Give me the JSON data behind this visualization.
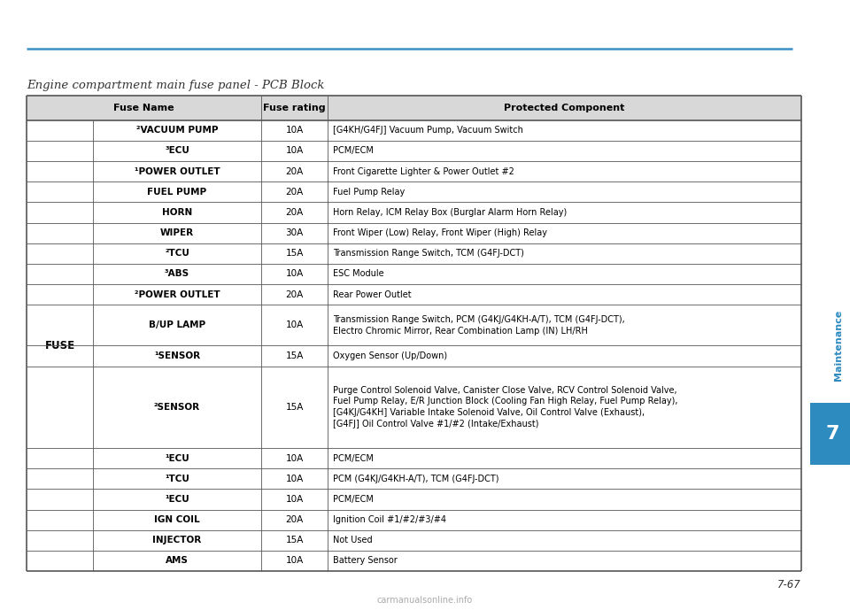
{
  "title": "Engine compartment main fuse panel - PCB Block",
  "page_number": "7-67",
  "chapter": "Maintenance",
  "chapter_number": "7",
  "top_bar_color": "#3a8fc4",
  "chapter_bar_color": "#2e8bc0",
  "header": [
    "Fuse Name",
    "Fuse rating",
    "Protected Component"
  ],
  "fuse_label": "FUSE",
  "rows": [
    {
      "name": "²VACUUM PUMP",
      "rating": "10A",
      "component": "[G4KH/G4FJ] Vacuum Pump, Vacuum Switch"
    },
    {
      "name": "³ECU",
      "rating": "10A",
      "component": "PCM/ECM"
    },
    {
      "name": "¹POWER OUTLET",
      "rating": "20A",
      "component": "Front Cigarette Lighter & Power Outlet #2"
    },
    {
      "name": "FUEL PUMP",
      "rating": "20A",
      "component": "Fuel Pump Relay"
    },
    {
      "name": "HORN",
      "rating": "20A",
      "component": "Horn Relay, ICM Relay Box (Burglar Alarm Horn Relay)"
    },
    {
      "name": "WIPER",
      "rating": "30A",
      "component": "Front Wiper (Low) Relay, Front Wiper (High) Relay"
    },
    {
      "name": "²TCU",
      "rating": "15A",
      "component": "Transmission Range Switch, TCM (G4FJ-DCT)"
    },
    {
      "name": "³ABS",
      "rating": "10A",
      "component": "ESC Module"
    },
    {
      "name": "²POWER OUTLET",
      "rating": "20A",
      "component": "Rear Power Outlet"
    },
    {
      "name": "B/UP LAMP",
      "rating": "10A",
      "component": "Transmission Range Switch, PCM (G4KJ/G4KH-A/T), TCM (G4FJ-DCT),\nElectro Chromic Mirror, Rear Combination Lamp (IN) LH/RH"
    },
    {
      "name": "¹SENSOR",
      "rating": "15A",
      "component": "Oxygen Sensor (Up/Down)"
    },
    {
      "name": "²SENSOR",
      "rating": "15A",
      "component": "Purge Control Solenoid Valve, Canister Close Valve, RCV Control Solenoid Valve,\nFuel Pump Relay, E/R Junction Block (Cooling Fan High Relay, Fuel Pump Relay),\n[G4KJ/G4KH] Variable Intake Solenoid Valve, Oil Control Valve (Exhaust),\n[G4FJ] Oil Control Valve #1/#2 (Intake/Exhaust)"
    },
    {
      "name": "¹ECU",
      "rating": "10A",
      "component": "PCM/ECM"
    },
    {
      "name": "¹TCU",
      "rating": "10A",
      "component": "PCM (G4KJ/G4KH-A/T), TCM (G4FJ-DCT)"
    },
    {
      "name": "¹ECU",
      "rating": "10A",
      "component": "PCM/ECM"
    },
    {
      "name": "IGN COIL",
      "rating": "20A",
      "component": "Ignition Coil #1/#2/#3/#4"
    },
    {
      "name": "INJECTOR",
      "rating": "15A",
      "component": "Not Used"
    },
    {
      "name": "AMS",
      "rating": "10A",
      "component": "Battery Sensor"
    }
  ],
  "bg_color": "#ffffff",
  "header_bg": "#d8d8d8",
  "line_color": "#555555",
  "text_color": "#000000",
  "row_heights": [
    1,
    1,
    1,
    1,
    1,
    1,
    1,
    1,
    1,
    2,
    1,
    4,
    1,
    1,
    1,
    1,
    1,
    1
  ]
}
